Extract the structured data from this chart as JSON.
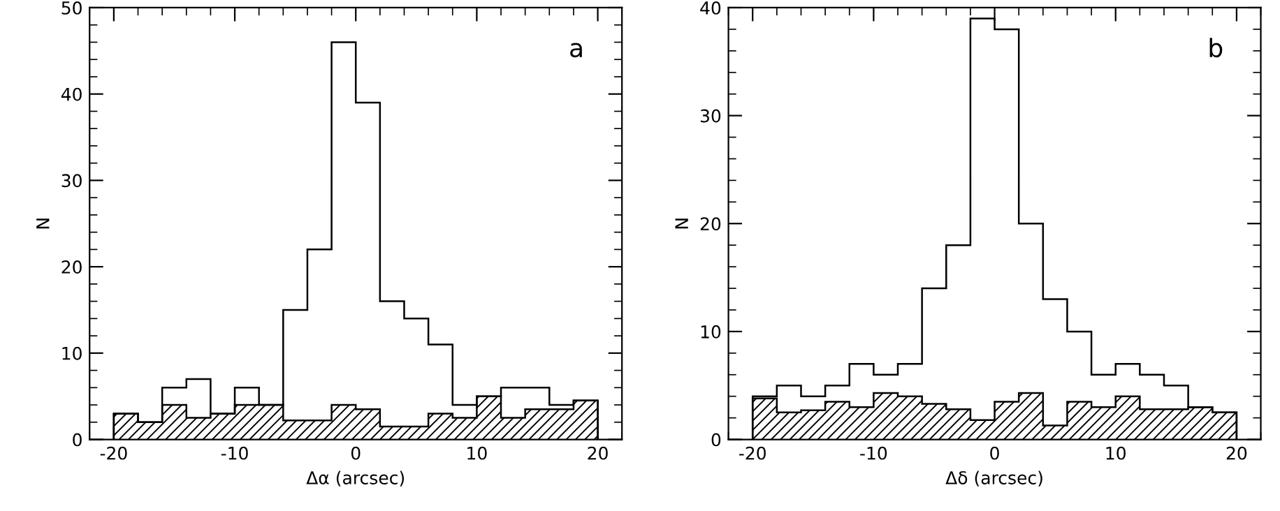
{
  "chart_data": [
    {
      "type": "histogram",
      "xlabel": "Δα (arcsec)",
      "ylabel": "N",
      "annotations": [
        "a"
      ],
      "bins": [
        -20,
        -18,
        -16,
        -14,
        -12,
        -10,
        -8,
        -6,
        -4,
        -2,
        0,
        2,
        4,
        6,
        8,
        10,
        12,
        14,
        16,
        18,
        20
      ],
      "series": [
        {
          "color": "#000000",
          "values": [
            3,
            2,
            6,
            7,
            3,
            6,
            4,
            15,
            22,
            46,
            39,
            16,
            14,
            11,
            4,
            5,
            6,
            6,
            4,
            4.5
          ]
        },
        {
          "color": "#000000",
          "values": [
            3,
            2,
            4,
            2.5,
            3,
            4,
            4,
            2.2,
            2.2,
            4,
            3.5,
            1.5,
            1.5,
            3,
            2.5,
            5,
            2.5,
            3.5,
            3.5,
            4.5
          ]
        }
      ],
      "xlim": [
        -22,
        22
      ],
      "xticks": [
        -20,
        -10,
        0,
        10,
        20
      ],
      "ylim": [
        0,
        50
      ],
      "yticks": [
        0,
        10,
        20,
        30,
        40,
        50
      ],
      "grid": false
    },
    {
      "type": "histogram",
      "xlabel": "Δδ (arcsec)",
      "ylabel": "N",
      "annotations": [
        "b"
      ],
      "bins": [
        -20,
        -18,
        -16,
        -14,
        -12,
        -10,
        -8,
        -6,
        -4,
        -2,
        0,
        2,
        4,
        6,
        8,
        10,
        12,
        14,
        16,
        18,
        20
      ],
      "series": [
        {
          "color": "#000000",
          "values": [
            4,
            5,
            4,
            5,
            7,
            6,
            7,
            14,
            18,
            39,
            38,
            20,
            13,
            10,
            6,
            7,
            6,
            5,
            3,
            2.5
          ]
        },
        {
          "color": "#000000",
          "values": [
            3.8,
            2.5,
            2.7,
            3.5,
            3,
            4.3,
            4,
            3.3,
            2.8,
            1.8,
            3.5,
            4.3,
            1.3,
            3.5,
            3,
            4,
            2.8,
            2.8,
            3,
            2.5
          ]
        }
      ],
      "xlim": [
        -22,
        22
      ],
      "xticks": [
        -20,
        -10,
        0,
        10,
        20
      ],
      "ylim": [
        0,
        40
      ],
      "yticks": [
        0,
        10,
        20,
        30,
        40
      ],
      "grid": false
    }
  ]
}
